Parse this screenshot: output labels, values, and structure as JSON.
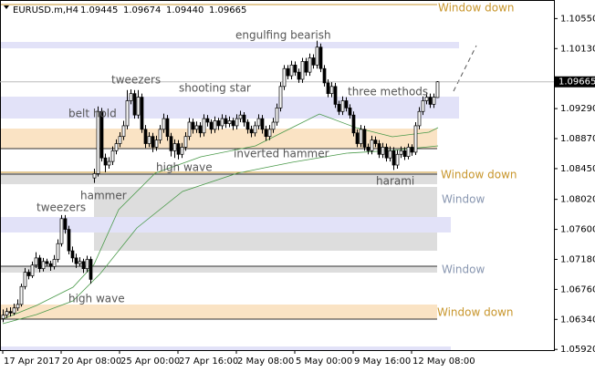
{
  "chart_data": {
    "type": "candlestick",
    "title": "EURUSD.m,H4",
    "header_ohlc": [
      "1.09445",
      "1.09674",
      "1.09440",
      "1.09665"
    ],
    "up_color": "#ffffff",
    "down_color": "#000000",
    "edge_color": "#000000",
    "ylim": [
      1.0591,
      1.1081
    ],
    "yticks": [
      {
        "value": 1.1055,
        "label": "1.10550"
      },
      {
        "value": 1.1013,
        "label": "1.10130"
      },
      {
        "value": 1.0929,
        "label": "1.09290"
      },
      {
        "value": 1.0887,
        "label": "1.08870"
      },
      {
        "value": 1.0845,
        "label": "1.08450"
      },
      {
        "value": 1.0802,
        "label": "1.08020"
      },
      {
        "value": 1.076,
        "label": "1.07600"
      },
      {
        "value": 1.0718,
        "label": "1.07180"
      },
      {
        "value": 1.0676,
        "label": "1.06760"
      },
      {
        "value": 1.0634,
        "label": "1.06340"
      },
      {
        "value": 1.0592,
        "label": "1.05920"
      }
    ],
    "last_price": {
      "value": 1.09665,
      "label": "1.09665"
    },
    "xticks": [
      {
        "value": 0,
        "label": "17 Apr 2017"
      },
      {
        "value": 16,
        "label": "20 Apr 08:00"
      },
      {
        "value": 32,
        "label": "25 Apr 00:00"
      },
      {
        "value": 48,
        "label": "27 Apr 16:00"
      },
      {
        "value": 64,
        "label": "2 May 08:00"
      },
      {
        "value": 80,
        "label": "5 May 00:00"
      },
      {
        "value": 96,
        "label": "9 May 16:00"
      },
      {
        "value": 112,
        "label": "12 May 08:00"
      }
    ],
    "annotations": [
      "Window down",
      "engulfing bearish",
      "tweezers",
      "shooting star",
      "belt hold",
      "three methods",
      "high wave",
      "inverted hammer",
      "Window down",
      "harami",
      "hammer",
      "Window",
      "tweezers",
      "Window",
      "high wave",
      "Window down"
    ],
    "candles": [
      [
        1.0635,
        1.0648,
        1.063,
        1.064
      ],
      [
        1.064,
        1.065,
        1.0636,
        1.0645
      ],
      [
        1.0645,
        1.0651,
        1.0638,
        1.0643
      ],
      [
        1.0643,
        1.0656,
        1.064,
        1.065
      ],
      [
        1.065,
        1.0662,
        1.0646,
        1.0655
      ],
      [
        1.0655,
        1.0684,
        1.0652,
        1.068
      ],
      [
        1.068,
        1.0706,
        1.0676,
        1.07
      ],
      [
        1.07,
        1.0704,
        1.069,
        1.0695
      ],
      [
        1.0695,
        1.0715,
        1.0692,
        1.071
      ],
      [
        1.071,
        1.0728,
        1.0706,
        1.072
      ],
      [
        1.072,
        1.0724,
        1.07,
        1.0705
      ],
      [
        1.0705,
        1.072,
        1.0701,
        1.0715
      ],
      [
        1.0715,
        1.0719,
        1.0708,
        1.0712
      ],
      [
        1.0712,
        1.0716,
        1.0702,
        1.0708
      ],
      [
        1.0708,
        1.0724,
        1.0704,
        1.0718
      ],
      [
        1.0718,
        1.0746,
        1.0714,
        1.074
      ],
      [
        1.074,
        1.078,
        1.0736,
        1.0775
      ],
      [
        1.0775,
        1.078,
        1.0754,
        1.076
      ],
      [
        1.076,
        1.0765,
        1.0725,
        1.073
      ],
      [
        1.073,
        1.0736,
        1.0714,
        1.072
      ],
      [
        1.072,
        1.0726,
        1.0706,
        1.0712
      ],
      [
        1.0712,
        1.0721,
        1.0708,
        1.0715
      ],
      [
        1.0715,
        1.0719,
        1.0699,
        1.0705
      ],
      [
        1.0705,
        1.0723,
        1.07,
        1.0718
      ],
      [
        1.0718,
        1.0722,
        1.0684,
        1.069
      ],
      [
        1.0832,
        1.0845,
        1.0825,
        1.0838
      ],
      [
        1.0838,
        1.0932,
        1.0834,
        1.0925
      ],
      [
        1.0925,
        1.093,
        1.0855,
        1.086
      ],
      [
        1.086,
        1.0866,
        1.084,
        1.085
      ],
      [
        1.085,
        1.0861,
        1.0845,
        1.0855
      ],
      [
        1.0855,
        1.0876,
        1.085,
        1.087
      ],
      [
        1.087,
        1.0886,
        1.0865,
        1.088
      ],
      [
        1.088,
        1.0896,
        1.0875,
        1.089
      ],
      [
        1.089,
        1.0912,
        1.0885,
        1.0905
      ],
      [
        1.0905,
        1.0955,
        1.09,
        1.094
      ],
      [
        1.094,
        1.0956,
        1.0935,
        1.095
      ],
      [
        1.095,
        1.0955,
        1.0915,
        1.092
      ],
      [
        1.092,
        1.0955,
        1.0915,
        1.0945
      ],
      [
        1.0945,
        1.095,
        1.0895,
        1.09
      ],
      [
        1.09,
        1.0906,
        1.0874,
        1.088
      ],
      [
        1.088,
        1.0896,
        1.0875,
        1.089
      ],
      [
        1.089,
        1.0895,
        1.0868,
        1.0875
      ],
      [
        1.0875,
        1.0891,
        1.087,
        1.0885
      ],
      [
        1.0885,
        1.0906,
        1.088,
        1.09
      ],
      [
        1.09,
        1.0922,
        1.0895,
        1.0915
      ],
      [
        1.0915,
        1.092,
        1.0884,
        1.089
      ],
      [
        1.089,
        1.0895,
        1.0862,
        1.087
      ],
      [
        1.087,
        1.0886,
        1.086,
        1.088
      ],
      [
        1.088,
        1.0885,
        1.0858,
        1.0865
      ],
      [
        1.0865,
        1.0881,
        1.086,
        1.0875
      ],
      [
        1.0875,
        1.0896,
        1.087,
        1.089
      ],
      [
        1.089,
        1.0916,
        1.0885,
        1.091
      ],
      [
        1.091,
        1.0915,
        1.0894,
        1.09
      ],
      [
        1.09,
        1.0911,
        1.0895,
        1.0905
      ],
      [
        1.0905,
        1.091,
        1.0889,
        1.0895
      ],
      [
        1.0895,
        1.0921,
        1.089,
        1.0915
      ],
      [
        1.0915,
        1.092,
        1.0904,
        1.091
      ],
      [
        1.091,
        1.0914,
        1.0894,
        1.09
      ],
      [
        1.09,
        1.0918,
        1.0895,
        1.0912
      ],
      [
        1.0912,
        1.0916,
        1.0899,
        1.0905
      ],
      [
        1.0905,
        1.0921,
        1.09,
        1.0915
      ],
      [
        1.0915,
        1.092,
        1.0902,
        1.0908
      ],
      [
        1.0908,
        1.0918,
        1.0903,
        1.0912
      ],
      [
        1.0912,
        1.0916,
        1.0899,
        1.0905
      ],
      [
        1.0905,
        1.0921,
        1.09,
        1.0915
      ],
      [
        1.0915,
        1.0926,
        1.091,
        1.092
      ],
      [
        1.092,
        1.0924,
        1.0904,
        1.091
      ],
      [
        1.091,
        1.0914,
        1.0894,
        1.09
      ],
      [
        1.09,
        1.0905,
        1.0889,
        1.0895
      ],
      [
        1.0895,
        1.0911,
        1.089,
        1.0905
      ],
      [
        1.0905,
        1.0921,
        1.09,
        1.0915
      ],
      [
        1.0915,
        1.092,
        1.0894,
        1.09
      ],
      [
        1.09,
        1.0905,
        1.0884,
        1.089
      ],
      [
        1.089,
        1.0906,
        1.0885,
        1.09
      ],
      [
        1.09,
        1.0916,
        1.0895,
        1.091
      ],
      [
        1.091,
        1.0936,
        1.0905,
        1.093
      ],
      [
        1.093,
        1.0966,
        1.0925,
        1.096
      ],
      [
        1.096,
        1.099,
        1.0955,
        1.0985
      ],
      [
        1.0985,
        1.099,
        1.097,
        1.0975
      ],
      [
        1.0975,
        1.0996,
        1.097,
        1.099
      ],
      [
        1.099,
        1.0995,
        1.0975,
        1.098
      ],
      [
        1.098,
        1.0985,
        1.0965,
        1.097
      ],
      [
        1.097,
        1.1,
        1.0965,
        1.0995
      ],
      [
        1.0995,
        1.1,
        1.0975,
        1.098
      ],
      [
        1.098,
        1.1006,
        1.0975,
        1.1
      ],
      [
        1.1,
        1.1005,
        1.0985,
        1.099
      ],
      [
        1.099,
        1.1024,
        1.0985,
        1.1015
      ],
      [
        1.1015,
        1.102,
        1.098,
        1.0985
      ],
      [
        1.0985,
        1.099,
        1.096,
        1.0965
      ],
      [
        1.0965,
        1.097,
        1.0945,
        1.095
      ],
      [
        1.095,
        1.0966,
        1.0945,
        1.096
      ],
      [
        1.096,
        1.0965,
        1.093,
        1.0935
      ],
      [
        1.0935,
        1.094,
        1.092,
        1.0925
      ],
      [
        1.0925,
        1.0946,
        1.092,
        1.094
      ],
      [
        1.094,
        1.0945,
        1.0925,
        1.093
      ],
      [
        1.093,
        1.0935,
        1.0915,
        1.092
      ],
      [
        1.092,
        1.0925,
        1.089,
        1.0895
      ],
      [
        1.0895,
        1.09,
        1.0875,
        1.088
      ],
      [
        1.088,
        1.0906,
        1.0875,
        1.09
      ],
      [
        1.09,
        1.0905,
        1.087,
        1.0875
      ],
      [
        1.0875,
        1.088,
        1.0865,
        1.087
      ],
      [
        1.087,
        1.0891,
        1.0865,
        1.0885
      ],
      [
        1.0885,
        1.089,
        1.0875,
        1.088
      ],
      [
        1.088,
        1.0885,
        1.086,
        1.0865
      ],
      [
        1.0865,
        1.0881,
        1.086,
        1.0875
      ],
      [
        1.0875,
        1.088,
        1.0855,
        1.086
      ],
      [
        1.086,
        1.0876,
        1.0855,
        1.087
      ],
      [
        1.087,
        1.0875,
        1.0843,
        1.085
      ],
      [
        1.085,
        1.0871,
        1.0845,
        1.0865
      ],
      [
        1.0865,
        1.0876,
        1.086,
        1.087
      ],
      [
        1.087,
        1.0875,
        1.0857,
        1.0862
      ],
      [
        1.0862,
        1.088,
        1.0858,
        1.0875
      ],
      [
        1.0875,
        1.0879,
        1.0863,
        1.0868
      ],
      [
        1.0868,
        1.091,
        1.0864,
        1.0905
      ],
      [
        1.0905,
        1.0931,
        1.09,
        1.0925
      ],
      [
        1.0925,
        1.0946,
        1.092,
        1.094
      ],
      [
        1.094,
        1.0951,
        1.0935,
        1.0945
      ],
      [
        1.0945,
        1.095,
        1.093,
        1.0935
      ],
      [
        1.0935,
        1.095,
        1.093,
        1.0945
      ],
      [
        1.09445,
        1.09674,
        1.0944,
        1.09665
      ]
    ]
  }
}
